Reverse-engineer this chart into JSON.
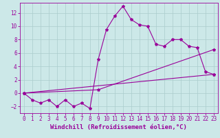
{
  "xlabel": "Windchill (Refroidissement éolien,°C)",
  "bg_color": "#cce8e8",
  "line_color": "#990099",
  "grid_color": "#aacccc",
  "xlim": [
    -0.5,
    23.5
  ],
  "ylim": [
    -3,
    13.5
  ],
  "xticks": [
    0,
    1,
    2,
    3,
    4,
    5,
    6,
    7,
    8,
    9,
    10,
    11,
    12,
    13,
    14,
    15,
    16,
    17,
    18,
    19,
    20,
    21,
    22,
    23
  ],
  "yticks": [
    -2,
    0,
    2,
    4,
    6,
    8,
    10,
    12
  ],
  "line1_x": [
    0,
    1,
    2,
    3,
    4,
    5,
    6,
    7,
    8,
    9,
    10,
    11,
    12,
    13,
    14,
    15,
    16,
    17,
    18,
    19,
    20,
    21,
    22,
    23
  ],
  "line1_y": [
    0,
    -1,
    -1.5,
    -1,
    -2,
    -1,
    -2,
    -1.5,
    -2.3,
    5,
    9.5,
    11.5,
    13,
    11,
    10.2,
    10,
    7.3,
    7,
    8,
    8,
    7,
    6.8,
    3.2,
    2.8
  ],
  "line2_x": [
    0,
    23
  ],
  "line2_y": [
    0,
    2.8
  ],
  "line3_x": [
    0,
    9,
    23
  ],
  "line3_y": [
    0,
    0.5,
    6.5
  ],
  "marker": "*",
  "markersize": 3,
  "linewidth": 0.8,
  "xlabel_fontsize": 6.5,
  "tick_fontsize": 5.5
}
